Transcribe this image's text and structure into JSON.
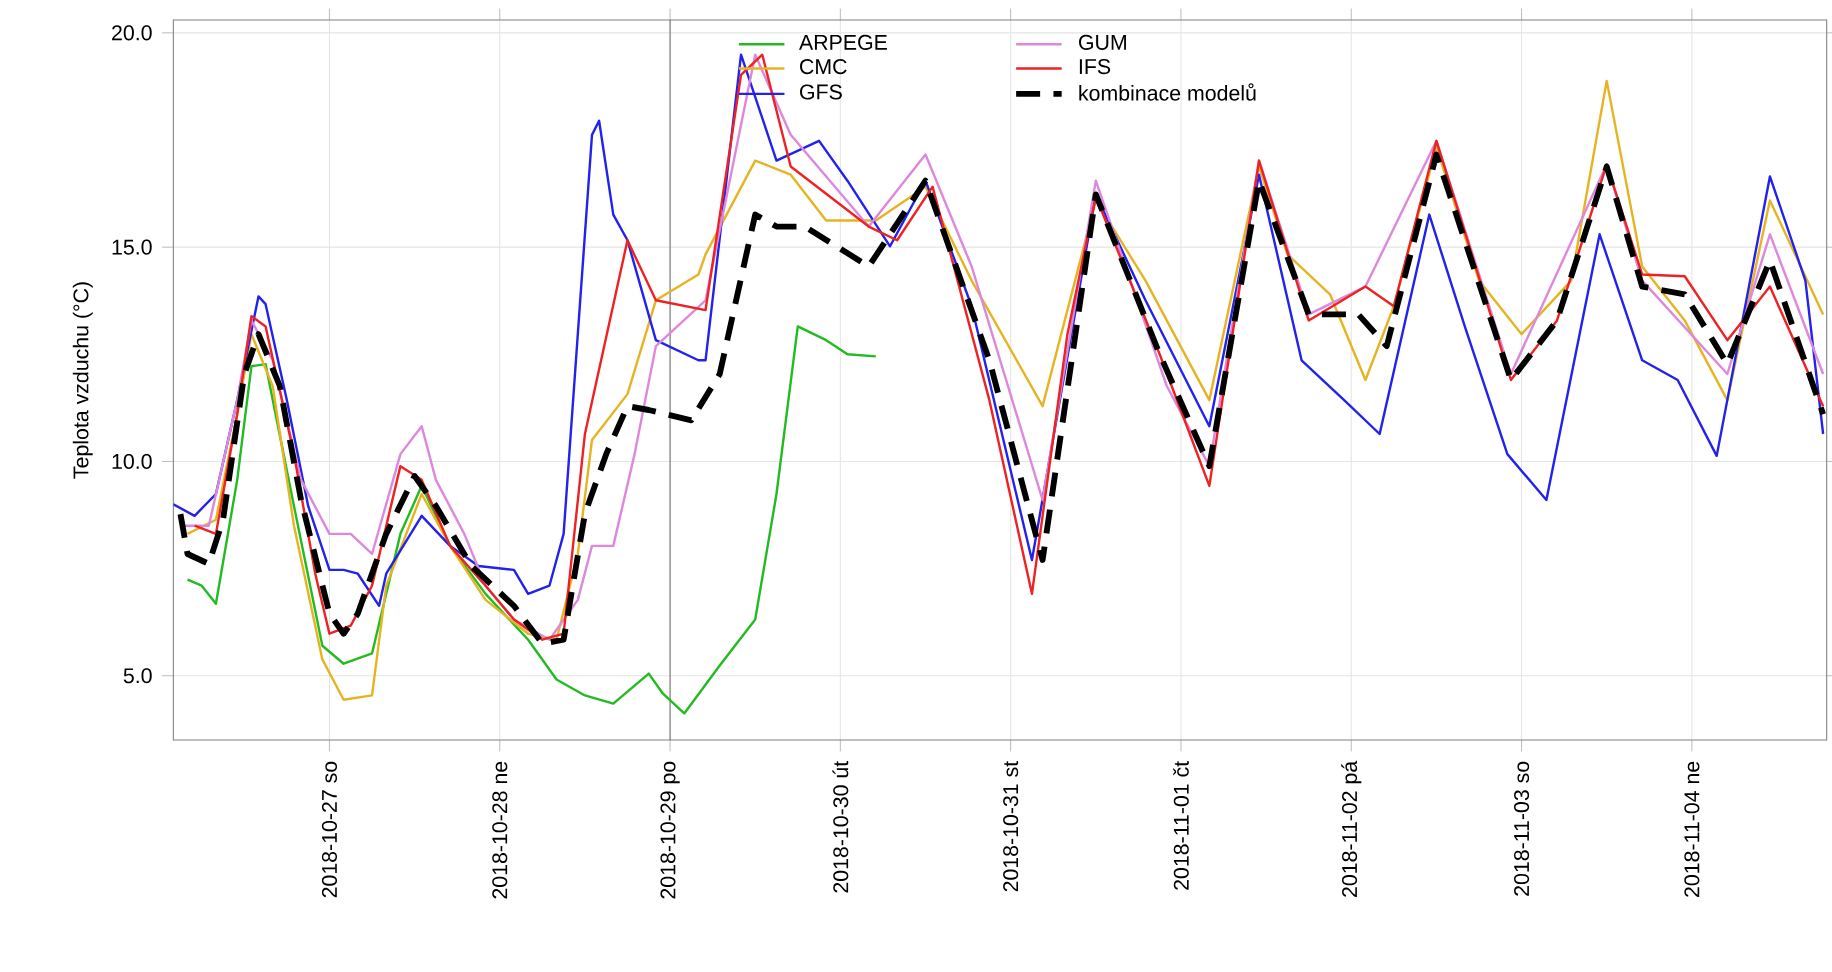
{
  "chart_data": {
    "type": "line",
    "ylabel": "Teplota vzduchu (°C)",
    "xlim": [
      "2018-10-26T02:00",
      "2018-11-04T19:00"
    ],
    "ylim": [
      3.5,
      20.3
    ],
    "yticks": [
      {
        "value": 5,
        "label": "5.0"
      },
      {
        "value": 10,
        "label": "10.0"
      },
      {
        "value": 15,
        "label": "15.0"
      },
      {
        "value": 20,
        "label": "20.0"
      }
    ],
    "xticks": [
      {
        "value": "2018-10-27",
        "label": "2018-10-27 so"
      },
      {
        "value": "2018-10-28",
        "label": "2018-10-28 ne"
      },
      {
        "value": "2018-10-29",
        "label": "2018-10-29 po"
      },
      {
        "value": "2018-10-30",
        "label": "2018-10-30 út"
      },
      {
        "value": "2018-10-31",
        "label": "2018-10-31 st"
      },
      {
        "value": "2018-11-01",
        "label": "2018-11-01 čt"
      },
      {
        "value": "2018-11-02",
        "label": "2018-11-02 pá"
      },
      {
        "value": "2018-11-03",
        "label": "2018-11-03 so"
      },
      {
        "value": "2018-11-04",
        "label": "2018-11-04 ne"
      }
    ],
    "grid": true,
    "legend": "top",
    "ref_lines": [
      {
        "axis": "x",
        "value": "2018-10-29",
        "color": "#666666"
      }
    ],
    "series": [
      {
        "name": "ARPEGE",
        "color": "#22bb22",
        "line_style": "solid",
        "x": [
          "2018-10-26T04:00",
          "2018-10-26T06:00",
          "2018-10-26T08:00",
          "2018-10-26T11:00",
          "2018-10-26T13:00",
          "2018-10-26T15:00",
          "2018-10-26T19:00",
          "2018-10-26T23:00",
          "2018-10-27T02:00",
          "2018-10-27T06:00",
          "2018-10-27T10:00",
          "2018-10-27T13:00",
          "2018-10-27T17:00",
          "2018-10-27T22:00",
          "2018-10-28T04:00",
          "2018-10-28T08:00",
          "2018-10-28T12:00",
          "2018-10-28T16:00",
          "2018-10-28T21:00",
          "2018-10-28T23:00",
          "2018-10-29T02:00",
          "2018-10-29T07:00",
          "2018-10-29T12:00",
          "2018-10-29T15:00",
          "2018-10-29T18:00",
          "2018-10-29T22:00",
          "2018-10-30T01:00",
          "2018-10-30T05:00"
        ],
        "values": [
          7.24,
          7.1,
          6.68,
          9.57,
          12.22,
          12.27,
          8.96,
          5.7,
          5.28,
          5.52,
          8.31,
          9.43,
          8.03,
          6.91,
          5.84,
          4.91,
          4.54,
          4.35,
          5.05,
          4.58,
          4.12,
          5.24,
          6.31,
          9.24,
          13.15,
          12.83,
          12.5,
          12.45
        ]
      },
      {
        "name": "CMC",
        "color": "#e6b422",
        "line_style": "solid",
        "x": [
          "2018-10-26T04:00",
          "2018-10-26T08:00",
          "2018-10-26T11:00",
          "2018-10-26T13:00",
          "2018-10-26T16:00",
          "2018-10-26T19:00",
          "2018-10-26T23:00",
          "2018-10-27T02:00",
          "2018-10-27T06:00",
          "2018-10-27T08:00",
          "2018-10-27T13:00",
          "2018-10-27T17:00",
          "2018-10-27T22:00",
          "2018-10-28T04:00",
          "2018-10-28T08:00",
          "2018-10-28T11:00",
          "2018-10-28T13:00",
          "2018-10-28T18:00",
          "2018-10-28T22:00",
          "2018-10-29T04:00",
          "2018-10-29T05:00",
          "2018-10-29T12:00",
          "2018-10-29T17:00",
          "2018-10-29T22:00",
          "2018-10-30T05:00",
          "2018-10-30T12:00",
          "2018-10-30T18:30",
          "2018-10-31T04:30",
          "2018-10-31T12:00",
          "2018-10-31T19:00",
          "2018-11-01T04:00",
          "2018-11-01T11:00",
          "2018-11-01T15:00",
          "2018-11-01T21:00",
          "2018-11-02T02:00",
          "2018-11-02T06:00",
          "2018-11-02T12:00",
          "2018-11-02T18:00",
          "2018-11-03T00:00",
          "2018-11-03T07:00",
          "2018-11-03T12:00",
          "2018-11-03T17:00",
          "2018-11-03T23:00",
          "2018-11-04T05:00",
          "2018-11-04T11:00",
          "2018-11-04T18:30"
        ],
        "values": [
          8.31,
          8.64,
          11.1,
          12.97,
          11.76,
          8.5,
          5.38,
          4.44,
          4.54,
          7.1,
          9.24,
          8.03,
          6.77,
          5.98,
          5.84,
          7.84,
          10.5,
          11.57,
          13.76,
          14.36,
          14.83,
          17.02,
          16.69,
          15.62,
          15.62,
          16.41,
          14.22,
          11.29,
          16.09,
          14.22,
          11.43,
          16.88,
          14.83,
          13.9,
          11.9,
          13.62,
          17.34,
          14.22,
          12.97,
          14.22,
          18.88,
          14.55,
          13.29,
          11.43,
          16.09,
          13.43
        ]
      },
      {
        "name": "GFS",
        "color": "#2222ee",
        "line_style": "solid",
        "x": [
          "2018-10-26T02:00",
          "2018-10-26T05:00",
          "2018-10-26T08:00",
          "2018-10-26T11:00",
          "2018-10-26T14:00",
          "2018-10-26T15:00",
          "2018-10-26T18:00",
          "2018-10-26T21:00",
          "2018-10-27T00:00",
          "2018-10-27T02:00",
          "2018-10-27T04:00",
          "2018-10-27T07:00",
          "2018-10-27T08:00",
          "2018-10-27T13:00",
          "2018-10-27T17:00",
          "2018-10-27T21:00",
          "2018-10-28T02:00",
          "2018-10-28T04:00",
          "2018-10-28T07:00",
          "2018-10-28T09:00",
          "2018-10-28T11:00",
          "2018-10-28T13:00",
          "2018-10-28T14:00",
          "2018-10-28T16:00",
          "2018-10-28T18:00",
          "2018-10-28T22:00",
          "2018-10-29T04:00",
          "2018-10-29T05:00",
          "2018-10-29T10:00",
          "2018-10-29T15:00",
          "2018-10-29T21:00",
          "2018-10-30T01:00",
          "2018-10-30T07:00",
          "2018-10-30T12:00",
          "2018-10-30T18:30",
          "2018-10-31T03:00",
          "2018-10-31T12:00",
          "2018-10-31T19:00",
          "2018-11-01T04:00",
          "2018-11-01T11:00",
          "2018-11-01T17:00",
          "2018-11-01T23:00",
          "2018-11-02T04:00",
          "2018-11-02T11:00",
          "2018-11-02T16:00",
          "2018-11-02T22:00",
          "2018-11-03T03:30",
          "2018-11-03T11:00",
          "2018-11-03T17:00",
          "2018-11-03T22:00",
          "2018-11-04T03:30",
          "2018-11-04T11:00",
          "2018-11-04T16:00",
          "2018-11-04T18:30"
        ],
        "values": [
          9.0,
          8.73,
          9.24,
          11.43,
          13.85,
          13.67,
          11.43,
          8.96,
          7.47,
          7.47,
          7.38,
          6.63,
          7.38,
          8.73,
          8.03,
          7.56,
          7.47,
          6.91,
          7.1,
          8.31,
          12.97,
          17.62,
          17.95,
          15.76,
          15.16,
          12.83,
          12.36,
          12.36,
          19.49,
          17.02,
          17.48,
          16.55,
          15.02,
          16.55,
          13.62,
          7.7,
          16.23,
          13.76,
          10.82,
          16.69,
          12.36,
          11.43,
          10.64,
          15.76,
          13.15,
          10.17,
          9.1,
          15.3,
          12.36,
          11.9,
          10.13,
          16.65,
          14.22,
          10.64
        ]
      },
      {
        "name": "GUM",
        "color": "#dd88dd",
        "line_style": "solid",
        "x": [
          "2018-10-26T03:00",
          "2018-10-26T07:00",
          "2018-10-26T11:00",
          "2018-10-26T13:00",
          "2018-10-26T16:00",
          "2018-10-26T20:00",
          "2018-10-27T00:00",
          "2018-10-27T03:00",
          "2018-10-27T06:00",
          "2018-10-27T10:00",
          "2018-10-27T13:00",
          "2018-10-27T15:00",
          "2018-10-27T19:00",
          "2018-10-27T22:00",
          "2018-10-28T02:00",
          "2018-10-28T07:00",
          "2018-10-28T11:00",
          "2018-10-28T13:00",
          "2018-10-28T16:00",
          "2018-10-28T19:00",
          "2018-10-28T22:00",
          "2018-10-29T05:00",
          "2018-10-29T12:00",
          "2018-10-29T17:00",
          "2018-10-30T04:00",
          "2018-10-30T12:00",
          "2018-10-30T18:30",
          "2018-10-31T04:30",
          "2018-10-31T12:00",
          "2018-10-31T22:00",
          "2018-11-01T04:00",
          "2018-11-01T11:00",
          "2018-11-01T18:00",
          "2018-11-02T02:00",
          "2018-11-02T12:00",
          "2018-11-02T22:30",
          "2018-11-03T12:00",
          "2018-11-03T17:00",
          "2018-11-04T05:00",
          "2018-11-04T11:00",
          "2018-11-04T18:30"
        ],
        "values": [
          8.5,
          8.5,
          11.43,
          13.29,
          12.36,
          9.57,
          8.31,
          8.31,
          7.84,
          10.17,
          10.82,
          9.57,
          8.31,
          7.1,
          6.31,
          5.84,
          6.77,
          8.03,
          8.03,
          10.17,
          12.69,
          13.76,
          19.49,
          17.62,
          15.48,
          17.16,
          14.55,
          9.1,
          16.55,
          11.76,
          9.89,
          17.02,
          13.43,
          14.08,
          17.48,
          12.04,
          16.93,
          14.22,
          12.04,
          15.3,
          12.04
        ]
      },
      {
        "name": "IFS",
        "color": "#ee2222",
        "line_style": "solid",
        "x": [
          "2018-10-26T05:00",
          "2018-10-26T08:00",
          "2018-10-26T11:00",
          "2018-10-26T13:00",
          "2018-10-26T15:00",
          "2018-10-26T19:00",
          "2018-10-26T22:00",
          "2018-10-27T00:00",
          "2018-10-27T03:00",
          "2018-10-27T06:00",
          "2018-10-27T10:00",
          "2018-10-27T13:00",
          "2018-10-27T17:00",
          "2018-10-27T22:00",
          "2018-10-28T02:00",
          "2018-10-28T06:00",
          "2018-10-28T09:00",
          "2018-10-28T12:00",
          "2018-10-28T18:00",
          "2018-10-28T22:00",
          "2018-10-29T05:00",
          "2018-10-29T10:00",
          "2018-10-29T13:00",
          "2018-10-29T17:00",
          "2018-10-30T04:00",
          "2018-10-30T08:00",
          "2018-10-30T13:00",
          "2018-10-30T21:00",
          "2018-10-31T03:00",
          "2018-10-31T08:00",
          "2018-10-31T12:00",
          "2018-10-31T21:00",
          "2018-11-01T04:00",
          "2018-11-01T11:00",
          "2018-11-01T18:00",
          "2018-11-02T02:00",
          "2018-11-02T06:00",
          "2018-11-02T12:00",
          "2018-11-02T22:30",
          "2018-11-03T05:00",
          "2018-11-03T12:00",
          "2018-11-03T17:00",
          "2018-11-03T23:00",
          "2018-11-04T05:00",
          "2018-11-04T11:00",
          "2018-11-04T18:30"
        ],
        "values": [
          8.5,
          8.31,
          11.1,
          13.39,
          13.15,
          10.17,
          7.38,
          5.98,
          6.17,
          7.1,
          9.89,
          9.57,
          8.03,
          7.1,
          6.31,
          5.84,
          5.98,
          10.64,
          15.16,
          13.76,
          13.53,
          19.02,
          19.49,
          16.88,
          15.48,
          15.16,
          16.41,
          11.43,
          6.91,
          12.97,
          16.18,
          12.5,
          9.43,
          17.02,
          13.29,
          14.08,
          13.62,
          17.48,
          11.9,
          13.29,
          16.93,
          14.36,
          14.32,
          12.83,
          14.08,
          11.29
        ]
      },
      {
        "name": "kombinace modelů",
        "color": "#000000",
        "line_style": "dashed",
        "x": [
          "2018-10-26T03:00",
          "2018-10-26T04:00",
          "2018-10-26T07:00",
          "2018-10-26T09:00",
          "2018-10-26T12:00",
          "2018-10-26T14:00",
          "2018-10-26T17:00",
          "2018-10-26T20:00",
          "2018-10-27T00:00",
          "2018-10-27T02:00",
          "2018-10-27T04:00",
          "2018-10-27T08:00",
          "2018-10-27T12:00",
          "2018-10-27T15:00",
          "2018-10-27T20:00",
          "2018-10-28T02:00",
          "2018-10-28T06:00",
          "2018-10-28T09:00",
          "2018-10-28T12:00",
          "2018-10-28T15:00",
          "2018-10-28T18:00",
          "2018-10-28T21:00",
          "2018-10-29T03:00",
          "2018-10-29T07:00",
          "2018-10-29T12:00",
          "2018-10-29T15:00",
          "2018-10-29T19:00",
          "2018-10-30T04:00",
          "2018-10-30T12:00",
          "2018-10-30T21:00",
          "2018-10-31T04:30",
          "2018-10-31T12:00",
          "2018-10-31T21:00",
          "2018-11-01T04:00",
          "2018-11-01T11:00",
          "2018-11-01T18:00",
          "2018-11-02T01:00",
          "2018-11-02T05:00",
          "2018-11-02T12:00",
          "2018-11-02T22:30",
          "2018-11-03T05:00",
          "2018-11-03T12:00",
          "2018-11-03T17:00",
          "2018-11-03T23:00",
          "2018-11-04T05:00",
          "2018-11-04T11:00",
          "2018-11-04T18:30"
        ],
        "values": [
          8.77,
          7.84,
          7.61,
          8.64,
          12.04,
          12.97,
          11.76,
          9.1,
          6.45,
          5.98,
          6.45,
          8.31,
          9.66,
          8.96,
          7.56,
          6.63,
          5.75,
          5.84,
          8.78,
          10.17,
          11.29,
          11.2,
          10.96,
          12.04,
          15.76,
          15.48,
          15.48,
          14.55,
          16.55,
          12.36,
          7.7,
          16.23,
          12.5,
          9.89,
          16.55,
          13.43,
          13.43,
          12.69,
          17.16,
          11.9,
          13.29,
          16.88,
          14.08,
          13.9,
          12.27,
          14.69,
          11.1
        ]
      }
    ]
  }
}
